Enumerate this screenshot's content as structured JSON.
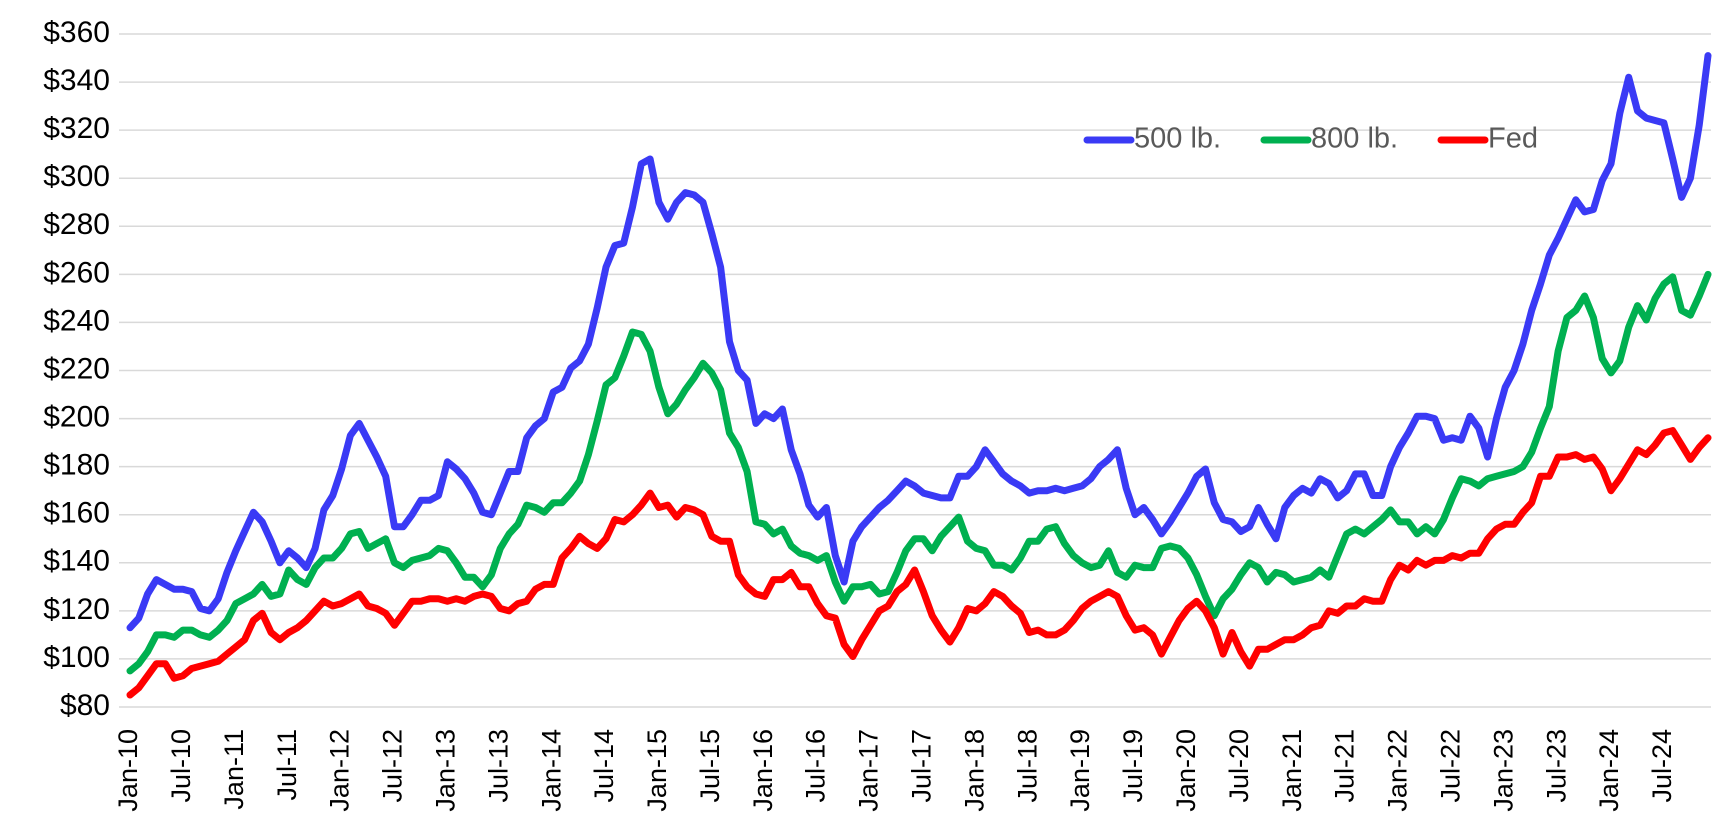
{
  "chart_data": {
    "type": "line",
    "categories": [
      "Jan-10",
      null,
      null,
      null,
      null,
      null,
      "Jul-10",
      null,
      null,
      null,
      null,
      null,
      "Jan-11",
      null,
      null,
      null,
      null,
      null,
      "Jul-11",
      null,
      null,
      null,
      null,
      null,
      "Jan-12",
      null,
      null,
      null,
      null,
      null,
      "Jul-12",
      null,
      null,
      null,
      null,
      null,
      "Jan-13",
      null,
      null,
      null,
      null,
      null,
      "Jul-13",
      null,
      null,
      null,
      null,
      null,
      "Jan-14",
      null,
      null,
      null,
      null,
      null,
      "Jul-14",
      null,
      null,
      null,
      null,
      null,
      "Jan-15",
      null,
      null,
      null,
      null,
      null,
      "Jul-15",
      null,
      null,
      null,
      null,
      null,
      "Jan-16",
      null,
      null,
      null,
      null,
      null,
      "Jul-16",
      null,
      null,
      null,
      null,
      null,
      "Jan-17",
      null,
      null,
      null,
      null,
      null,
      "Jul-17",
      null,
      null,
      null,
      null,
      null,
      "Jan-18",
      null,
      null,
      null,
      null,
      null,
      "Jul-18",
      null,
      null,
      null,
      null,
      null,
      "Jan-19",
      null,
      null,
      null,
      null,
      null,
      "Jul-19",
      null,
      null,
      null,
      null,
      null,
      "Jan-20",
      null,
      null,
      null,
      null,
      null,
      "Jul-20",
      null,
      null,
      null,
      null,
      null,
      "Jan-21",
      null,
      null,
      null,
      null,
      null,
      "Jul-21",
      null,
      null,
      null,
      null,
      null,
      "Jan-22",
      null,
      null,
      null,
      null,
      null,
      "Jul-22",
      null,
      null,
      null,
      null,
      null,
      "Jan-23",
      null,
      null,
      null,
      null,
      null,
      "Jul-23",
      null,
      null,
      null,
      null,
      null,
      "Jan-24",
      null,
      null,
      null,
      null,
      null,
      "Jul-24",
      null,
      null,
      null,
      null,
      null
    ],
    "series": [
      {
        "name": "500 lb.",
        "color": "#3a3af5",
        "values": [
          113,
          117,
          127,
          133,
          131,
          129,
          129,
          128,
          121,
          120,
          125,
          136,
          145,
          153,
          161,
          157,
          149,
          140,
          145,
          142,
          138,
          146,
          162,
          168,
          179,
          193,
          198,
          191,
          184,
          176,
          155,
          155,
          160,
          166,
          166,
          168,
          182,
          179,
          175,
          169,
          161,
          160,
          169,
          178,
          178,
          192,
          197,
          200,
          211,
          213,
          221,
          224,
          231,
          246,
          263,
          272,
          273,
          288,
          306,
          308,
          290,
          283,
          290,
          294,
          293,
          290,
          277,
          263,
          232,
          220,
          216,
          198,
          202,
          200,
          204,
          187,
          177,
          164,
          159,
          163,
          143,
          132,
          149,
          155,
          159,
          163,
          166,
          170,
          174,
          172,
          169,
          168,
          167,
          167,
          176,
          176,
          180,
          187,
          182,
          177,
          174,
          172,
          169,
          170,
          170,
          171,
          170,
          171,
          172,
          175,
          180,
          183,
          187,
          171,
          160,
          163,
          158,
          152,
          157,
          163,
          169,
          176,
          179,
          165,
          158,
          157,
          153,
          155,
          163,
          156,
          150,
          163,
          168,
          171,
          169,
          175,
          173,
          167,
          170,
          177,
          177,
          168,
          168,
          180,
          188,
          194,
          201,
          201,
          200,
          191,
          192,
          191,
          201,
          196,
          184,
          200,
          213,
          220,
          231,
          245,
          256,
          268,
          275,
          283,
          291,
          286,
          287,
          299,
          306,
          327,
          342,
          328,
          325,
          324,
          323,
          308,
          292,
          300,
          322,
          351
        ]
      },
      {
        "name": "800 lb.",
        "color": "#00b050",
        "values": [
          95,
          98,
          103,
          110,
          110,
          109,
          112,
          112,
          110,
          109,
          112,
          116,
          123,
          125,
          127,
          131,
          126,
          127,
          137,
          133,
          131,
          138,
          142,
          142,
          146,
          152,
          153,
          146,
          148,
          150,
          140,
          138,
          141,
          142,
          143,
          146,
          145,
          140,
          134,
          134,
          130,
          135,
          146,
          152,
          156,
          164,
          163,
          161,
          165,
          165,
          169,
          174,
          185,
          199,
          214,
          217,
          226,
          236,
          235,
          228,
          213,
          202,
          206,
          212,
          217,
          223,
          219,
          212,
          194,
          188,
          178,
          157,
          156,
          152,
          154,
          147,
          144,
          143,
          141,
          143,
          132,
          124,
          130,
          130,
          131,
          127,
          128,
          136,
          145,
          150,
          150,
          145,
          151,
          155,
          159,
          149,
          146,
          145,
          139,
          139,
          137,
          142,
          149,
          149,
          154,
          155,
          148,
          143,
          140,
          138,
          139,
          145,
          136,
          134,
          139,
          138,
          138,
          146,
          147,
          146,
          142,
          135,
          126,
          118,
          125,
          129,
          135,
          140,
          138,
          132,
          136,
          135,
          132,
          133,
          134,
          137,
          134,
          143,
          152,
          154,
          152,
          155,
          158,
          162,
          157,
          157,
          152,
          155,
          152,
          158,
          167,
          175,
          174,
          172,
          175,
          176,
          177,
          178,
          180,
          186,
          196,
          205,
          228,
          242,
          245,
          251,
          242,
          225,
          219,
          224,
          238,
          247,
          241,
          250,
          256,
          259,
          245,
          243,
          251,
          260
        ]
      },
      {
        "name": "Fed",
        "color": "#ff0000",
        "values": [
          85,
          88,
          93,
          98,
          98,
          92,
          93,
          96,
          97,
          98,
          99,
          102,
          105,
          108,
          116,
          119,
          111,
          108,
          111,
          113,
          116,
          120,
          124,
          122,
          123,
          125,
          127,
          122,
          121,
          119,
          114,
          119,
          124,
          124,
          125,
          125,
          124,
          125,
          124,
          126,
          127,
          126,
          121,
          120,
          123,
          124,
          129,
          131,
          131,
          142,
          146,
          151,
          148,
          146,
          150,
          158,
          157,
          160,
          164,
          169,
          163,
          164,
          159,
          163,
          162,
          160,
          151,
          149,
          149,
          135,
          130,
          127,
          126,
          133,
          133,
          136,
          130,
          130,
          123,
          118,
          117,
          106,
          101,
          108,
          114,
          120,
          122,
          128,
          131,
          137,
          128,
          118,
          112,
          107,
          113,
          121,
          120,
          123,
          128,
          126,
          122,
          119,
          111,
          112,
          110,
          110,
          112,
          116,
          121,
          124,
          126,
          128,
          126,
          118,
          112,
          113,
          110,
          102,
          109,
          116,
          121,
          124,
          120,
          113,
          102,
          111,
          103,
          97,
          104,
          104,
          106,
          108,
          108,
          110,
          113,
          114,
          120,
          119,
          122,
          122,
          125,
          124,
          124,
          133,
          139,
          137,
          141,
          139,
          141,
          141,
          143,
          142,
          144,
          144,
          150,
          154,
          156,
          156,
          161,
          165,
          176,
          176,
          184,
          184,
          185,
          183,
          184,
          179,
          170,
          175,
          181,
          187,
          185,
          189,
          194,
          195,
          189,
          183,
          188,
          192
        ]
      }
    ],
    "ylim": [
      80,
      360
    ],
    "yticks": [
      {
        "value": 80,
        "label": "$80"
      },
      {
        "value": 100,
        "label": "$100"
      },
      {
        "value": 120,
        "label": "$120"
      },
      {
        "value": 140,
        "label": "$140"
      },
      {
        "value": 160,
        "label": "$160"
      },
      {
        "value": 180,
        "label": "$180"
      },
      {
        "value": 200,
        "label": "$200"
      },
      {
        "value": 220,
        "label": "$220"
      },
      {
        "value": 240,
        "label": "$240"
      },
      {
        "value": 260,
        "label": "$260"
      },
      {
        "value": 280,
        "label": "$280"
      },
      {
        "value": 300,
        "label": "$300"
      },
      {
        "value": 320,
        "label": "$320"
      },
      {
        "value": 340,
        "label": "$340"
      },
      {
        "value": 360,
        "label": "$360"
      }
    ],
    "grid": true,
    "legend": "upper right"
  }
}
